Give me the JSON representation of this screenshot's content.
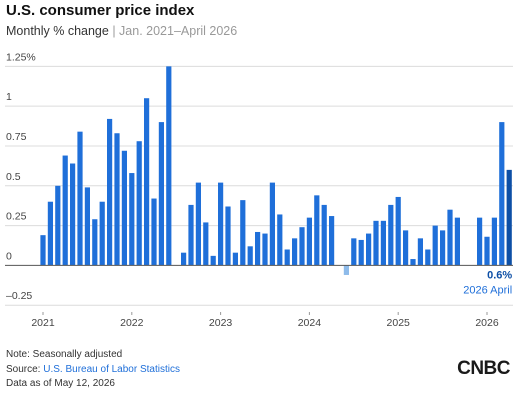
{
  "chart_data": {
    "type": "bar",
    "title": "U.S. consumer price index",
    "subtitle": "Monthly % change",
    "subtitle_range": "| Jan. 2021–April 2026",
    "categories": [
      "2021",
      null,
      null,
      null,
      null,
      null,
      null,
      null,
      null,
      null,
      null,
      null,
      "2022",
      null,
      null,
      null,
      null,
      null,
      null,
      null,
      null,
      null,
      null,
      null,
      "2023",
      null,
      null,
      null,
      null,
      null,
      null,
      null,
      null,
      null,
      null,
      null,
      "2024",
      null,
      null,
      null,
      null,
      null,
      null,
      null,
      null,
      null,
      null,
      null,
      "2025",
      null,
      null,
      null,
      null,
      null,
      null,
      null,
      null,
      null,
      null,
      null,
      "2026",
      null,
      null,
      null
    ],
    "values": [
      0.19,
      0.4,
      0.5,
      0.69,
      0.64,
      0.84,
      0.49,
      0.29,
      0.4,
      0.92,
      0.83,
      0.72,
      0.58,
      0.78,
      1.05,
      0.42,
      0.9,
      1.25,
      0.0,
      0.08,
      0.38,
      0.52,
      0.27,
      0.06,
      0.52,
      0.37,
      0.08,
      0.41,
      0.12,
      0.21,
      0.2,
      0.52,
      0.32,
      0.1,
      0.17,
      0.24,
      0.3,
      0.44,
      0.38,
      0.31,
      0.0,
      -0.06,
      0.17,
      0.16,
      0.2,
      0.28,
      0.28,
      0.38,
      0.43,
      0.22,
      0.04,
      0.17,
      0.1,
      0.25,
      0.22,
      0.35,
      0.3,
      null,
      null,
      0.3,
      0.18,
      0.3,
      0.9,
      0.6
    ],
    "color": "#1f6fd9",
    "negative_color": "#8ebbea",
    "highlight_color": "#0d4fa6",
    "highlight_label": "0.6%",
    "highlight_date": "2026 April",
    "ylim": [
      -0.28,
      1.29
    ],
    "yticks": [
      {
        "value": -0.25,
        "label": "–0.25"
      },
      0,
      0.25,
      0.5,
      0.75,
      1,
      {
        "value": 1.25,
        "label": "1.25%"
      }
    ],
    "grid": true,
    "note": "Note: Seasonally adjusted",
    "source_prefix": "Source:",
    "source": "U.S. Bureau of Labor Statistics",
    "data_as_of": "Data as of May 12, 2026",
    "logo": "CNBC"
  }
}
